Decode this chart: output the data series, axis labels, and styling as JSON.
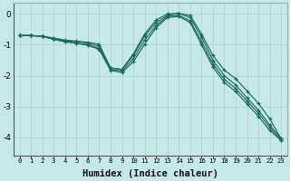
{
  "xlabel": "Humidex (Indice chaleur)",
  "background_color": "#c6e8e8",
  "grid_color": "#b0d4d4",
  "line_color": "#1a6b5a",
  "xlim": [
    -0.5,
    23.5
  ],
  "ylim": [
    -4.6,
    0.35
  ],
  "yticks": [
    0,
    -1,
    -2,
    -3,
    -4
  ],
  "xticks": [
    0,
    1,
    2,
    3,
    4,
    5,
    6,
    7,
    8,
    9,
    10,
    11,
    12,
    13,
    14,
    15,
    16,
    17,
    18,
    19,
    20,
    21,
    22,
    23
  ],
  "series": [
    [
      -0.7,
      -0.7,
      -0.72,
      -0.78,
      -0.85,
      -0.88,
      -0.92,
      -0.98,
      -1.75,
      -1.8,
      -1.3,
      -0.65,
      -0.2,
      0.0,
      0.02,
      -0.05,
      -0.65,
      -1.35,
      -1.82,
      -2.1,
      -2.5,
      -2.9,
      -3.4,
      -4.05
    ],
    [
      -0.7,
      -0.7,
      -0.72,
      -0.8,
      -0.87,
      -0.9,
      -0.95,
      -1.05,
      -1.75,
      -1.8,
      -1.35,
      -0.72,
      -0.28,
      -0.05,
      0.02,
      -0.12,
      -0.75,
      -1.5,
      -2.0,
      -2.3,
      -2.72,
      -3.12,
      -3.6,
      -4.05
    ],
    [
      -0.7,
      -0.7,
      -0.73,
      -0.82,
      -0.9,
      -0.95,
      -1.0,
      -1.12,
      -1.8,
      -1.85,
      -1.45,
      -0.85,
      -0.38,
      -0.08,
      -0.05,
      -0.22,
      -0.9,
      -1.62,
      -2.12,
      -2.42,
      -2.82,
      -3.22,
      -3.68,
      -4.1
    ],
    [
      -0.7,
      -0.7,
      -0.73,
      -0.82,
      -0.9,
      -0.95,
      -1.02,
      -1.15,
      -1.83,
      -1.9,
      -1.55,
      -0.98,
      -0.45,
      -0.12,
      -0.08,
      -0.28,
      -1.0,
      -1.72,
      -2.22,
      -2.52,
      -2.92,
      -3.32,
      -3.78,
      -4.1
    ]
  ]
}
